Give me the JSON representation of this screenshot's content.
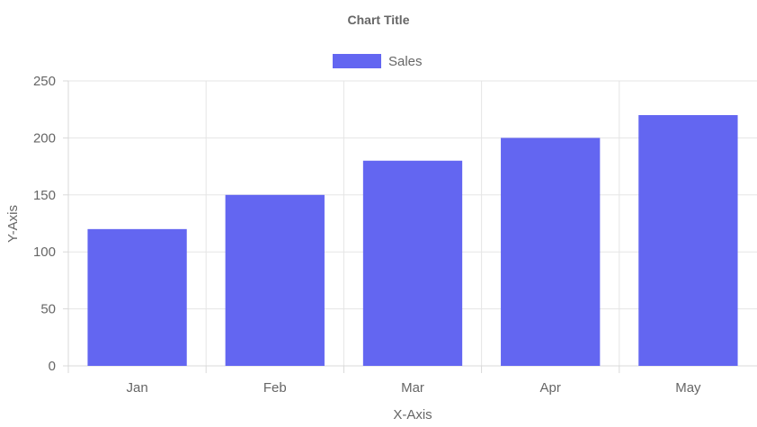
{
  "chart_data": {
    "type": "bar",
    "title": "Chart Title",
    "xlabel": "X-Axis",
    "ylabel": "Y-Axis",
    "categories": [
      "Jan",
      "Feb",
      "Mar",
      "Apr",
      "May"
    ],
    "series": [
      {
        "name": "Sales",
        "values": [
          120,
          150,
          180,
          200,
          220
        ],
        "color": "#6366F1"
      }
    ],
    "ylim": [
      0,
      250
    ],
    "yticks": [
      0,
      50,
      100,
      150,
      200,
      250
    ],
    "grid": true,
    "legend_position": "top-center"
  }
}
